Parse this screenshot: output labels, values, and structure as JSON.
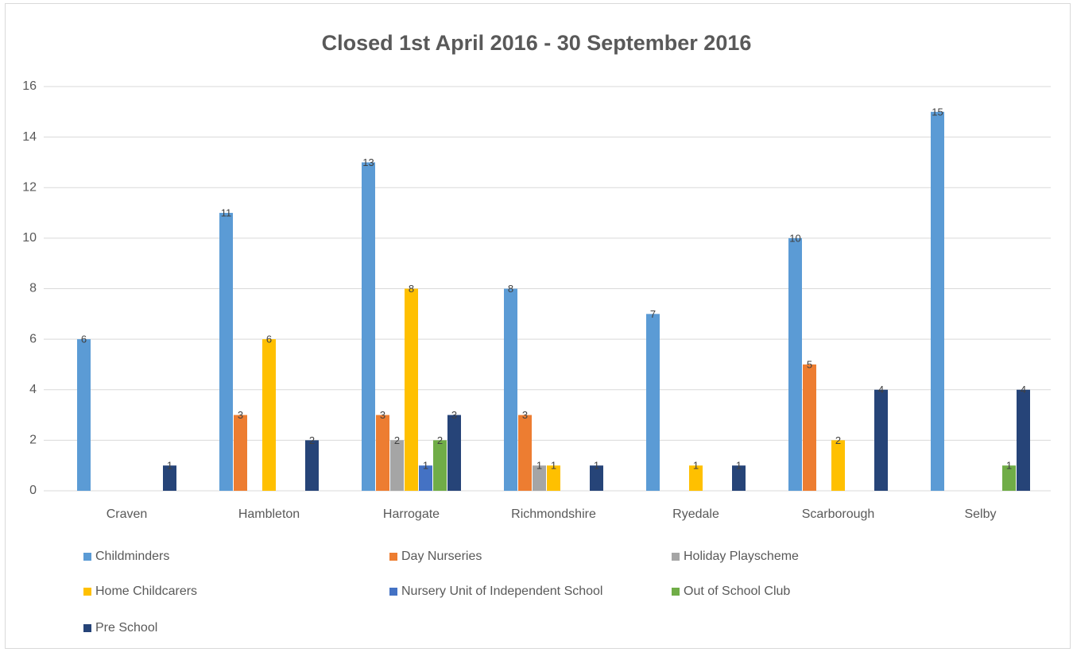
{
  "chart_data": {
    "type": "bar",
    "title": "Closed 1st April 2016 - 30 September 2016",
    "categories": [
      "Craven",
      "Hambleton",
      "Harrogate",
      "Richmondshire",
      "Ryedale",
      "Scarborough",
      "Selby"
    ],
    "series": [
      {
        "name": "Childminders",
        "color": "#5b9bd5",
        "values": [
          6,
          11,
          13,
          8,
          7,
          10,
          15
        ]
      },
      {
        "name": "Day Nurseries",
        "color": "#ed7d31",
        "values": [
          0,
          3,
          3,
          3,
          0,
          5,
          0
        ]
      },
      {
        "name": "Holiday Playscheme",
        "color": "#a5a5a5",
        "values": [
          0,
          0,
          2,
          1,
          0,
          0,
          0
        ]
      },
      {
        "name": "Home Childcarers",
        "color": "#ffc000",
        "values": [
          0,
          6,
          8,
          1,
          1,
          2,
          0
        ]
      },
      {
        "name": "Nursery Unit of Independent School",
        "color": "#4472c4",
        "values": [
          0,
          0,
          1,
          0,
          0,
          0,
          0
        ]
      },
      {
        "name": "Out of School Club",
        "color": "#70ad47",
        "values": [
          0,
          0,
          2,
          0,
          0,
          0,
          1
        ]
      },
      {
        "name": "Pre School",
        "color": "#264478",
        "values": [
          1,
          2,
          3,
          1,
          1,
          4,
          4
        ]
      }
    ],
    "ylim": [
      0,
      16
    ],
    "yticks": [
      0,
      2,
      4,
      6,
      8,
      10,
      12,
      14,
      16
    ],
    "grid": true,
    "legend": "bottom"
  }
}
